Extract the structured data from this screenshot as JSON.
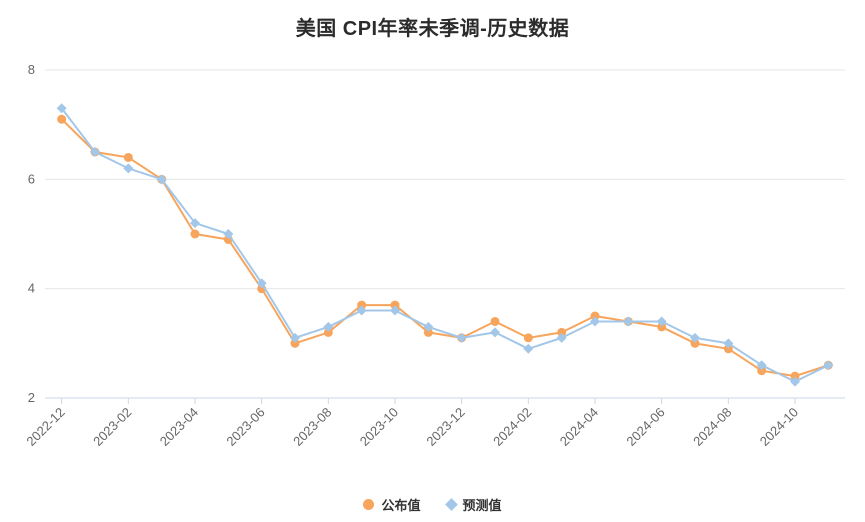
{
  "title": "美国 CPI年率未季调-历史数据",
  "legend": [
    {
      "label": "公布值",
      "marker": "circle",
      "color": "#f7a55c"
    },
    {
      "label": "预测值",
      "marker": "diamond",
      "color": "#a3c7e8"
    }
  ],
  "axis": {
    "label_color": "#666666",
    "grid_color": "#e6e6e6",
    "axis_line_color": "#ccd6eb"
  },
  "chart_data": {
    "type": "line",
    "title": "美国 CPI年率未季调-历史数据",
    "xlabel": "",
    "ylabel": "",
    "ylim": [
      2,
      8
    ],
    "yticks": [
      2,
      4,
      6,
      8
    ],
    "grid": true,
    "legend_position": "bottom",
    "x": [
      "2022-12",
      "2023-01",
      "2023-02",
      "2023-03",
      "2023-04",
      "2023-05",
      "2023-06",
      "2023-07",
      "2023-08",
      "2023-09",
      "2023-10",
      "2023-11",
      "2023-12",
      "2024-01",
      "2024-02",
      "2024-03",
      "2024-04",
      "2024-05",
      "2024-06",
      "2024-07",
      "2024-08",
      "2024-09",
      "2024-10",
      "2024-11"
    ],
    "x_tick_labels": [
      "2022-12",
      "2023-02",
      "2023-04",
      "2023-06",
      "2023-08",
      "2023-10",
      "2023-12",
      "2024-02",
      "2024-04",
      "2024-06",
      "2024-08",
      "2024-10"
    ],
    "series": [
      {
        "name": "公布值",
        "marker": "circle",
        "color": "#f7a55c",
        "values": [
          7.1,
          6.5,
          6.4,
          6.0,
          5.0,
          4.9,
          4.0,
          3.0,
          3.2,
          3.7,
          3.7,
          3.2,
          3.1,
          3.4,
          3.1,
          3.2,
          3.5,
          3.4,
          3.3,
          3.0,
          2.9,
          2.5,
          2.4,
          2.6
        ]
      },
      {
        "name": "预测值",
        "marker": "diamond",
        "color": "#a3c7e8",
        "values": [
          7.3,
          6.5,
          6.2,
          6.0,
          5.2,
          5.0,
          4.1,
          3.1,
          3.3,
          3.6,
          3.6,
          3.3,
          3.1,
          3.2,
          2.9,
          3.1,
          3.4,
          3.4,
          3.4,
          3.1,
          3.0,
          2.6,
          2.3,
          2.6
        ]
      }
    ]
  }
}
